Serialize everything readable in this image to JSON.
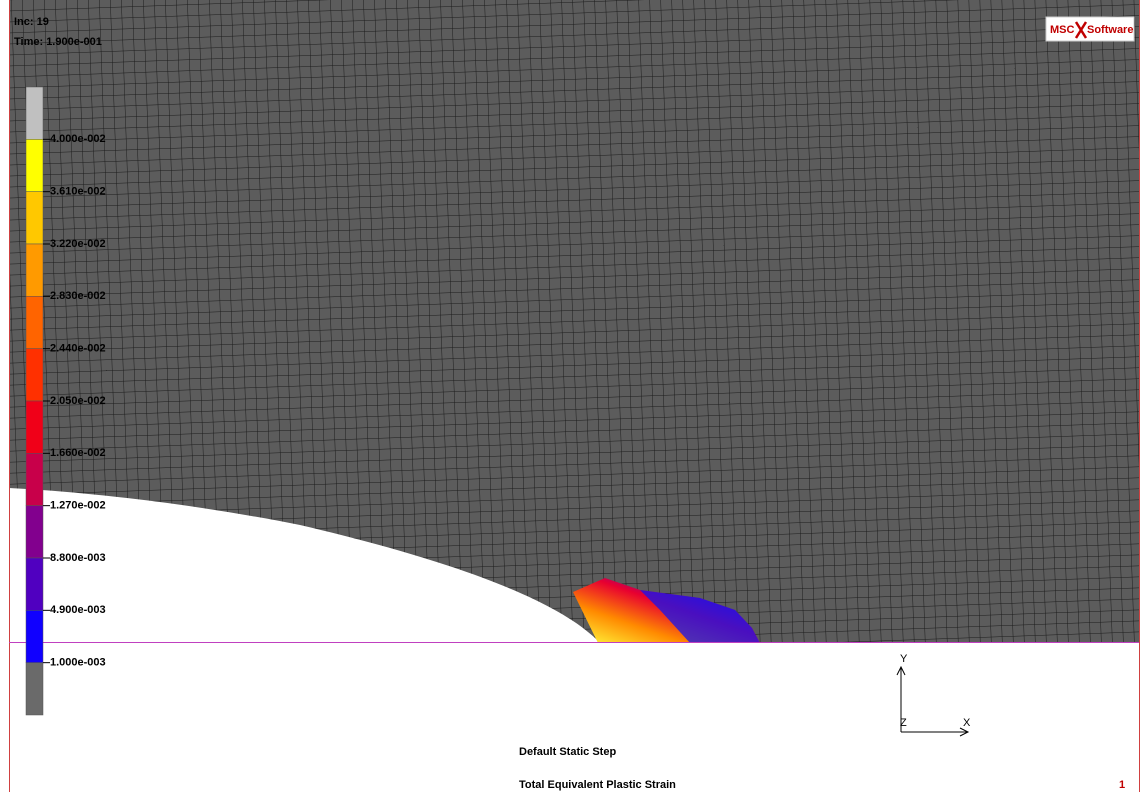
{
  "header": {
    "increment": "Inc:  19",
    "time": "Time: 1.900e-001"
  },
  "logo": {
    "left": "MSC",
    "right": "Software"
  },
  "legend": {
    "labels": [
      "4.000e-002",
      "3.610e-002",
      "3.220e-002",
      "2.830e-002",
      "2.440e-002",
      "2.050e-002",
      "1.660e-002",
      "1.270e-002",
      "8.800e-003",
      "4.900e-003",
      "1.000e-003"
    ],
    "colors": [
      "#c0c0c0",
      "#ffff00",
      "#ffc800",
      "#ff9a00",
      "#ff6400",
      "#ff3000",
      "#f00018",
      "#c8004a",
      "#82008e",
      "#5000c0",
      "#1000ff",
      "#6a6a6a"
    ]
  },
  "triad": {
    "y": "Y",
    "x": "X",
    "z": "Z"
  },
  "footer": {
    "step": "Default Static Step",
    "quantity": "Total Equivalent Plastic Strain",
    "window": "1"
  }
}
